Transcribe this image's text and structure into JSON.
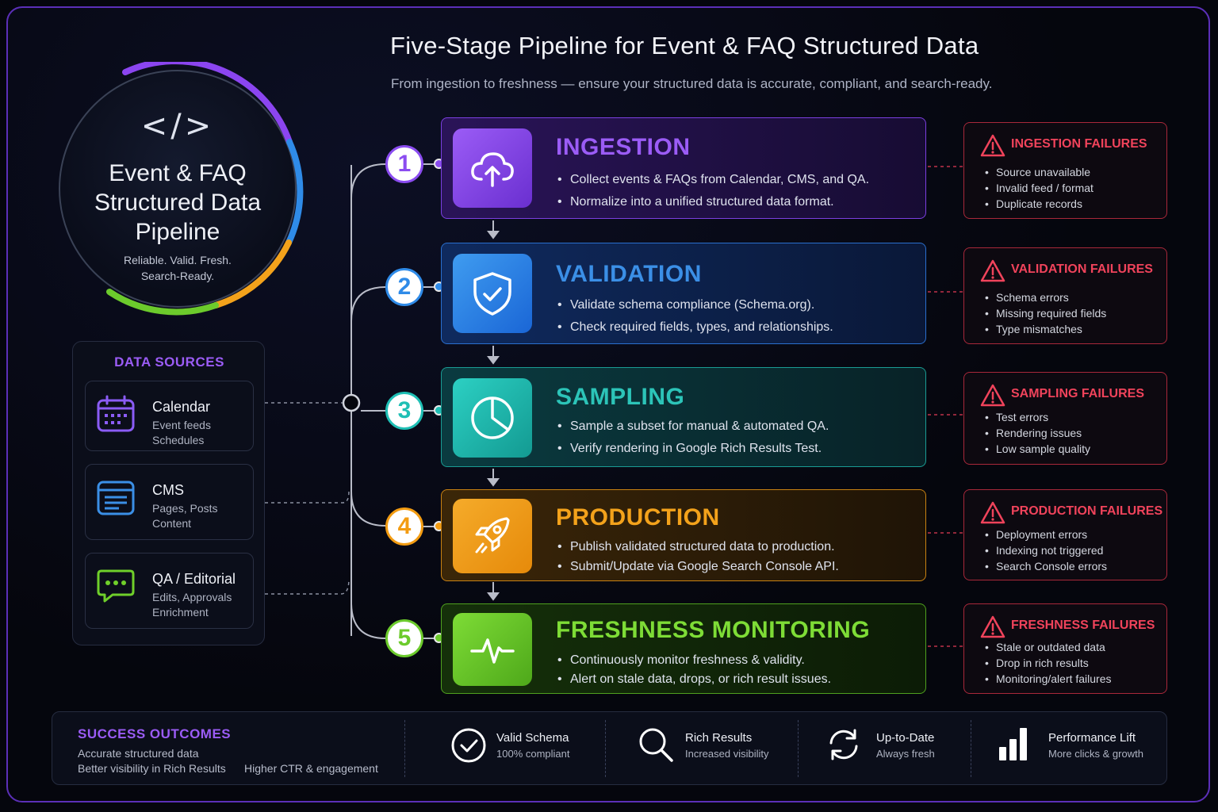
{
  "header": {
    "title": "Five-Stage Pipeline for Event & FAQ Structured Data",
    "subtitle": "From ingestion to freshness — ensure your structured data is accurate, compliant, and search-ready."
  },
  "hero": {
    "icon": "code-icon",
    "code_glyph": "</>",
    "title_line1": "Event & FAQ",
    "title_line2": "Structured Data",
    "title_line3": "Pipeline",
    "tagline_line1": "Reliable. Valid. Fresh.",
    "tagline_line2": "Search-Ready."
  },
  "sources": {
    "title": "DATA SOURCES",
    "items": [
      {
        "icon": "calendar-icon",
        "name": "Calendar",
        "sub1": "Event feeds",
        "sub2": "Schedules",
        "color": "#8b5cf6"
      },
      {
        "icon": "cms-window-icon",
        "name": "CMS",
        "sub1": "Pages, Posts",
        "sub2": "Content",
        "color": "#3b8fe6"
      },
      {
        "icon": "chat-bubble-icon",
        "name": "QA / Editorial",
        "sub1": "Edits, Approvals",
        "sub2": "Enrichment",
        "color": "#6fcf2a"
      }
    ]
  },
  "stages": [
    {
      "num": "1",
      "name": "INGESTION",
      "icon": "cloud-upload-icon",
      "color": "#8b4cf0",
      "bullets": [
        "Collect events & FAQs from Calendar, CMS, and QA.",
        "Normalize into a unified structured data format."
      ]
    },
    {
      "num": "2",
      "name": "VALIDATION",
      "icon": "shield-check-icon",
      "color": "#2f8be8",
      "bullets": [
        "Validate schema compliance (Schema.org).",
        "Check required fields, types, and relationships."
      ]
    },
    {
      "num": "3",
      "name": "SAMPLING",
      "icon": "pie-chart-icon",
      "color": "#1fbfb5",
      "bullets": [
        "Sample a subset for manual & automated QA.",
        "Verify rendering in Google Rich Results Test."
      ]
    },
    {
      "num": "4",
      "name": "PRODUCTION",
      "icon": "rocket-icon",
      "color": "#f39c12",
      "bullets": [
        "Publish validated structured data to production.",
        "Submit/Update via Google Search Console API."
      ]
    },
    {
      "num": "5",
      "name": "FRESHNESS MONITORING",
      "icon": "heartbeat-icon",
      "color": "#6ccb2c",
      "bullets": [
        "Continuously monitor freshness & validity.",
        "Alert on stale data, drops, or rich result issues."
      ]
    }
  ],
  "failures": [
    {
      "title": "INGESTION FAILURES",
      "items": [
        "Source unavailable",
        "Invalid feed / format",
        "Duplicate records"
      ]
    },
    {
      "title": "VALIDATION FAILURES",
      "items": [
        "Schema errors",
        "Missing required fields",
        "Type mismatches"
      ]
    },
    {
      "title": "SAMPLING FAILURES",
      "items": [
        "Test errors",
        "Rendering issues",
        "Low sample quality"
      ]
    },
    {
      "title": "PRODUCTION FAILURES",
      "items": [
        "Deployment errors",
        "Indexing not triggered",
        "Search Console errors"
      ]
    },
    {
      "title": "FRESHNESS FAILURES",
      "items": [
        "Stale or outdated data",
        "Drop in rich results",
        "Monitoring/alert failures"
      ]
    }
  ],
  "outcomes": {
    "title": "SUCCESS OUTCOMES",
    "line1": "Accurate structured data",
    "line2": "Better visibility in Rich Results",
    "line3": "Higher CTR & engagement",
    "metrics": [
      {
        "icon": "check-circle-icon",
        "label": "Valid Schema",
        "sub": "100% compliant"
      },
      {
        "icon": "magnifier-icon",
        "label": "Rich Results",
        "sub": "Increased visibility"
      },
      {
        "icon": "refresh-icon",
        "label": "Up-to-Date",
        "sub": "Always fresh"
      },
      {
        "icon": "bar-chart-icon",
        "label": "Performance Lift",
        "sub": "More clicks & growth"
      }
    ]
  },
  "colors": {
    "accent_purple": "#9b5cf6",
    "failure_red": "#f0435b",
    "background": "#05060d"
  }
}
